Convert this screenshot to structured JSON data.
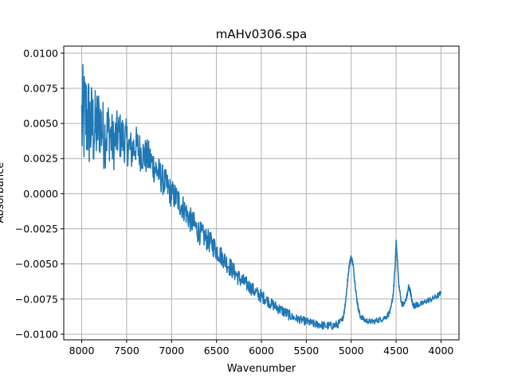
{
  "chart_data": {
    "type": "line",
    "title": "mAHv0306.spa",
    "xlabel": "Wavenumber",
    "ylabel": "Absorbance",
    "x_reversed": true,
    "xlim": [
      8200,
      3800
    ],
    "ylim": [
      -0.0104,
      0.0105
    ],
    "grid": true,
    "xticks": [
      {
        "value": 8000,
        "label": "8000"
      },
      {
        "value": 7500,
        "label": "7500"
      },
      {
        "value": 7000,
        "label": "7000"
      },
      {
        "value": 6500,
        "label": "6500"
      },
      {
        "value": 6000,
        "label": "6000"
      },
      {
        "value": 5500,
        "label": "5500"
      },
      {
        "value": 5000,
        "label": "5000"
      },
      {
        "value": 4500,
        "label": "4500"
      },
      {
        "value": 4000,
        "label": "4000"
      }
    ],
    "yticks": [
      {
        "value": 0.01,
        "label": "0.0100"
      },
      {
        "value": 0.0075,
        "label": "0.0075"
      },
      {
        "value": 0.005,
        "label": "0.0050"
      },
      {
        "value": 0.0025,
        "label": "0.0025"
      },
      {
        "value": 0.0,
        "label": "0.0000"
      },
      {
        "value": -0.0025,
        "label": "−0.0025"
      },
      {
        "value": -0.005,
        "label": "−0.0050"
      },
      {
        "value": -0.0075,
        "label": "−0.0075"
      },
      {
        "value": -0.01,
        "label": "−0.0100"
      }
    ],
    "series": [
      {
        "color": "#1f77b4",
        "x": [
          8000,
          7950,
          7900,
          7850,
          7800,
          7750,
          7700,
          7650,
          7600,
          7550,
          7500,
          7450,
          7400,
          7350,
          7300,
          7250,
          7200,
          7150,
          7100,
          7050,
          7000,
          6950,
          6900,
          6850,
          6800,
          6750,
          6700,
          6650,
          6600,
          6550,
          6500,
          6450,
          6400,
          6350,
          6300,
          6250,
          6200,
          6150,
          6100,
          6050,
          6000,
          5950,
          5900,
          5850,
          5800,
          5750,
          5700,
          5650,
          5600,
          5550,
          5500,
          5450,
          5400,
          5350,
          5300,
          5250,
          5200,
          5150,
          5100,
          5080,
          5060,
          5040,
          5020,
          5000,
          4980,
          4960,
          4940,
          4920,
          4900,
          4850,
          4800,
          4750,
          4700,
          4650,
          4600,
          4560,
          4530,
          4510,
          4500,
          4490,
          4470,
          4440,
          4410,
          4380,
          4360,
          4340,
          4320,
          4300,
          4280,
          4250,
          4200,
          4150,
          4100,
          4050,
          4000
        ],
        "y": [
          0.005,
          0.0055,
          0.0048,
          0.0045,
          0.0052,
          0.004,
          0.0046,
          0.0035,
          0.0042,
          0.004,
          0.0037,
          0.003,
          0.0035,
          0.003,
          0.0027,
          0.0025,
          0.002,
          0.0015,
          0.001,
          0.0005,
          0.0,
          -0.0003,
          -0.0007,
          -0.0012,
          -0.0018,
          -0.0022,
          -0.0027,
          -0.003,
          -0.0033,
          -0.0036,
          -0.004,
          -0.0044,
          -0.0048,
          -0.0052,
          -0.0056,
          -0.006,
          -0.0063,
          -0.0065,
          -0.0068,
          -0.0071,
          -0.0073,
          -0.0075,
          -0.0078,
          -0.008,
          -0.0082,
          -0.0084,
          -0.0086,
          -0.0088,
          -0.0089,
          -0.009,
          -0.0091,
          -0.0092,
          -0.0093,
          -0.0093,
          -0.0094,
          -0.0094,
          -0.0094,
          -0.0093,
          -0.009,
          -0.0085,
          -0.0075,
          -0.0062,
          -0.005,
          -0.0045,
          -0.005,
          -0.0062,
          -0.0074,
          -0.0082,
          -0.0087,
          -0.009,
          -0.0091,
          -0.0091,
          -0.009,
          -0.0089,
          -0.0087,
          -0.0083,
          -0.007,
          -0.005,
          -0.0035,
          -0.0043,
          -0.0065,
          -0.0078,
          -0.0079,
          -0.0073,
          -0.0066,
          -0.007,
          -0.0078,
          -0.008,
          -0.0079,
          -0.0079,
          -0.0078,
          -0.0076,
          -0.0075,
          -0.0073,
          -0.0071
        ],
        "noise": [
          0.0042,
          0.0038,
          0.0034,
          0.003,
          0.0027,
          0.0024,
          0.0022,
          0.002,
          0.0018,
          0.0017,
          0.0016,
          0.0015,
          0.0014,
          0.0014,
          0.0013,
          0.0013,
          0.0012,
          0.0012,
          0.0011,
          0.0011,
          0.001,
          0.001,
          0.001,
          0.0009,
          0.0009,
          0.0009,
          0.0009,
          0.0008,
          0.0008,
          0.0008,
          0.0008,
          0.0007,
          0.0007,
          0.0007,
          0.0006,
          0.0006,
          0.0006,
          0.0005,
          0.0005,
          0.0005,
          0.0005,
          0.0004,
          0.0004,
          0.0004,
          0.0004,
          0.0004,
          0.0004,
          0.0003,
          0.0003,
          0.0003,
          0.0003,
          0.0003,
          0.0003,
          0.0003,
          0.0003,
          0.0003,
          0.0003,
          0.0003,
          0.0002,
          0.0002,
          0.0002,
          0.0002,
          0.0002,
          0.0002,
          0.0002,
          0.0002,
          0.0002,
          0.0002,
          0.0002,
          0.0002,
          0.0002,
          0.0002,
          0.0002,
          0.0002,
          0.0002,
          0.0002,
          0.0002,
          0.0002,
          0.0002,
          0.0002,
          0.0002,
          0.0002,
          0.0002,
          0.0002,
          0.0002,
          0.0002,
          0.0002,
          0.0002,
          0.0002,
          0.0002,
          0.0002,
          0.0002,
          0.0002,
          0.0002,
          0.0002
        ]
      }
    ]
  }
}
